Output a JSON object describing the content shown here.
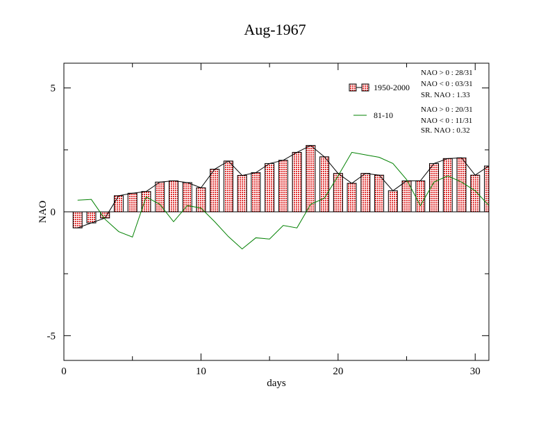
{
  "chart_data": {
    "type": "bar",
    "title": "Aug-1967",
    "xlabel": "days",
    "ylabel": "NAO",
    "xlim": [
      0,
      31
    ],
    "ylim": [
      -6,
      6
    ],
    "x_ticks": [
      0,
      10,
      20,
      30
    ],
    "x_tick_labels": [
      "0",
      "10",
      "20",
      "30"
    ],
    "y_ticks": [
      -5,
      0,
      5
    ],
    "y_tick_labels": [
      "-5",
      "0",
      "5"
    ],
    "grid": false,
    "legend_position": "top-right",
    "x": [
      1,
      2,
      3,
      4,
      5,
      6,
      7,
      8,
      9,
      10,
      11,
      12,
      13,
      14,
      15,
      16,
      17,
      18,
      19,
      20,
      21,
      22,
      23,
      24,
      25,
      26,
      27,
      28,
      29,
      30,
      31
    ],
    "series": [
      {
        "name": "1950-2000",
        "style": "bar+line",
        "color": "#000000",
        "fill": "#f08080",
        "values": [
          -0.65,
          -0.45,
          -0.25,
          0.65,
          0.75,
          0.82,
          1.2,
          1.25,
          1.18,
          0.97,
          1.72,
          2.05,
          1.47,
          1.58,
          1.95,
          2.08,
          2.4,
          2.68,
          2.22,
          1.55,
          1.15,
          1.55,
          1.48,
          0.85,
          1.25,
          1.25,
          1.95,
          2.15,
          2.18,
          1.48,
          1.85
        ]
      },
      {
        "name": "81-10",
        "style": "line",
        "color": "#008000",
        "values": [
          0.47,
          0.5,
          -0.3,
          -0.8,
          -1.02,
          0.6,
          0.3,
          -0.4,
          0.25,
          0.15,
          -0.4,
          -1.0,
          -1.5,
          -1.05,
          -1.1,
          -0.55,
          -0.65,
          0.3,
          0.55,
          1.45,
          2.4,
          2.3,
          2.2,
          1.95,
          1.3,
          0.25,
          1.2,
          1.45,
          1.2,
          0.85,
          0.25
        ]
      }
    ],
    "annotations": {
      "group1": [
        "NAO > 0 : 28/31",
        "NAO < 0 : 03/31",
        "SR. NAO :  1.33"
      ],
      "group2": [
        "NAO > 0 : 20/31",
        "NAO < 0 : 11/31",
        "SR. NAO :  0.32"
      ]
    }
  }
}
